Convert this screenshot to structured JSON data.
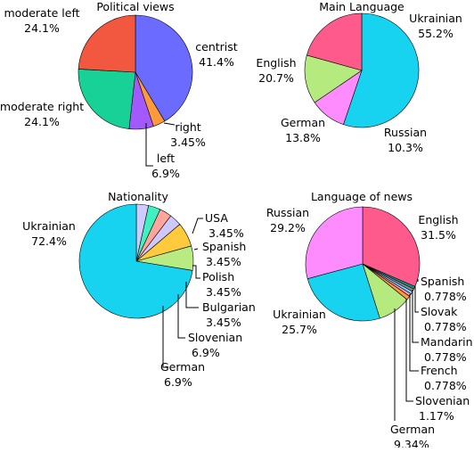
{
  "colors": {
    "blue": "#6b6bff",
    "orange": "#ff9a3c",
    "purple": "#a25aff",
    "teal": "#17d196",
    "red": "#f2573f",
    "cyan": "#18d3f0",
    "pink": "#ff5a8c",
    "green": "#b5ea7f",
    "magenta": "#ff8cff",
    "lavender": "#d0caff",
    "mint": "#40f0c0",
    "salmon": "#ffa59a",
    "lilac": "#cfc8ff",
    "yellow": "#ffca3c",
    "lightgreen": "#b8ec82",
    "darkteal": "#1a8f8a",
    "grey": "#8d8d8d",
    "sky": "#7fd0ff",
    "lightpink": "#ff9ab7"
  },
  "chart_data": [
    {
      "type": "pie",
      "title": "Political views",
      "slices": [
        {
          "label": "centrist",
          "value": "41.4%",
          "pct": 41.4,
          "color": "blue"
        },
        {
          "label": "right",
          "value": "3.45%",
          "pct": 3.45,
          "color": "orange"
        },
        {
          "label": "left",
          "value": "6.9%",
          "pct": 6.9,
          "color": "purple"
        },
        {
          "label": "moderate right",
          "value": "24.1%",
          "pct": 24.1,
          "color": "teal"
        },
        {
          "label": "moderate left",
          "value": "24.1%",
          "pct": 24.1,
          "color": "red"
        }
      ]
    },
    {
      "type": "pie",
      "title": "Main Language",
      "slices": [
        {
          "label": "Ukrainian",
          "value": "55.2%",
          "pct": 55.2,
          "color": "cyan"
        },
        {
          "label": "Russian",
          "value": "10.3%",
          "pct": 10.3,
          "color": "magenta"
        },
        {
          "label": "German",
          "value": "13.8%",
          "pct": 13.8,
          "color": "green"
        },
        {
          "label": "English",
          "value": "20.7%",
          "pct": 20.7,
          "color": "pink"
        }
      ]
    },
    {
      "type": "pie",
      "title": "Nationality",
      "slices": [
        {
          "label": "USA",
          "value": "3.45%",
          "pct": 3.45,
          "color": "lavender"
        },
        {
          "label": "Spanish",
          "value": "3.45%",
          "pct": 3.45,
          "color": "mint"
        },
        {
          "label": "Polish",
          "value": "3.45%",
          "pct": 3.45,
          "color": "salmon"
        },
        {
          "label": "Bulgarian",
          "value": "3.45%",
          "pct": 3.45,
          "color": "lilac"
        },
        {
          "label": "Slovenian",
          "value": "6.9%",
          "pct": 6.9,
          "color": "yellow"
        },
        {
          "label": "German",
          "value": "6.9%",
          "pct": 6.9,
          "color": "lightgreen"
        },
        {
          "label": "Ukrainian",
          "value": "72.4%",
          "pct": 72.4,
          "color": "cyan"
        }
      ]
    },
    {
      "type": "pie",
      "title": "Language of news",
      "slices": [
        {
          "label": "English",
          "value": "31.5%",
          "pct": 31.5,
          "color": "pink"
        },
        {
          "label": "Spanish",
          "value": "0.778%",
          "pct": 0.778,
          "color": "darkteal"
        },
        {
          "label": "Slovak",
          "value": "0.778%",
          "pct": 0.778,
          "color": "grey"
        },
        {
          "label": "Mandarin",
          "value": "0.778%",
          "pct": 0.778,
          "color": "sky"
        },
        {
          "label": "French",
          "value": "0.778%",
          "pct": 0.778,
          "color": "lightpink"
        },
        {
          "label": "Slovenian",
          "value": "1.17%",
          "pct": 1.17,
          "color": "orange"
        },
        {
          "label": "German",
          "value": "9.34%",
          "pct": 9.34,
          "color": "green"
        },
        {
          "label": "Ukrainian",
          "value": "25.7%",
          "pct": 25.7,
          "color": "cyan"
        },
        {
          "label": "Russian",
          "value": "29.2%",
          "pct": 29.2,
          "color": "magenta"
        }
      ]
    }
  ]
}
